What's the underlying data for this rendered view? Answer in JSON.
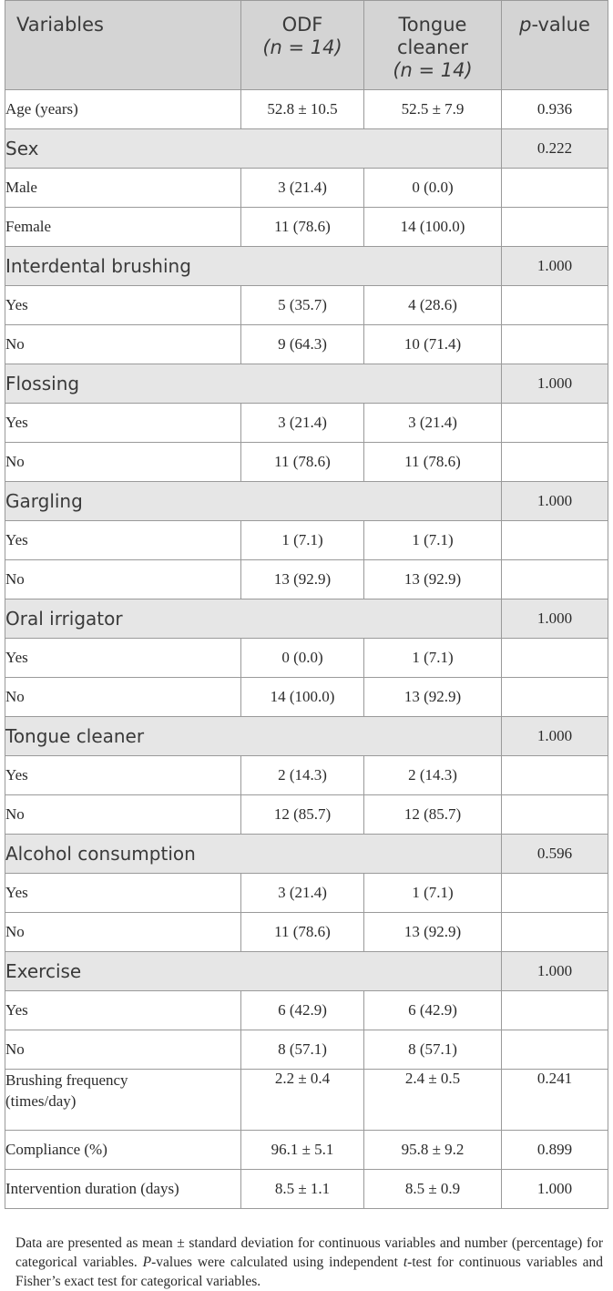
{
  "table": {
    "header": {
      "variables": "Variables",
      "odf_line1": "ODF",
      "odf_n": "(n = 14)",
      "tc_line1": "Tongue",
      "tc_line2": "cleaner",
      "tc_n": "(n = 14)",
      "p_italic": "p",
      "p_rest": "-value"
    },
    "age": {
      "label": "Age (years)",
      "odf": "52.8 ± 10.5",
      "tc": "52.5 ± 7.9",
      "p": "0.936"
    },
    "sections": [
      {
        "label": "Sex",
        "p": "0.222",
        "rows": [
          {
            "label": "Male",
            "odf": "3 (21.4)",
            "tc": "0 (0.0)"
          },
          {
            "label": "Female",
            "odf": "11 (78.6)",
            "tc": "14 (100.0)"
          }
        ]
      },
      {
        "label": "Interdental brushing",
        "p": "1.000",
        "rows": [
          {
            "label": "Yes",
            "odf": "5 (35.7)",
            "tc": "4 (28.6)"
          },
          {
            "label": "No",
            "odf": "9 (64.3)",
            "tc": "10 (71.4)"
          }
        ]
      },
      {
        "label": "Flossing",
        "p": "1.000",
        "rows": [
          {
            "label": "Yes",
            "odf": "3 (21.4)",
            "tc": "3 (21.4)"
          },
          {
            "label": "No",
            "odf": "11 (78.6)",
            "tc": "11 (78.6)"
          }
        ]
      },
      {
        "label": "Gargling",
        "p": "1.000",
        "rows": [
          {
            "label": "Yes",
            "odf": "1 (7.1)",
            "tc": "1 (7.1)"
          },
          {
            "label": "No",
            "odf": "13 (92.9)",
            "tc": "13 (92.9)"
          }
        ]
      },
      {
        "label": "Oral irrigator",
        "p": "1.000",
        "rows": [
          {
            "label": "Yes",
            "odf": "0 (0.0)",
            "tc": "1 (7.1)"
          },
          {
            "label": "No",
            "odf": "14 (100.0)",
            "tc": "13 (92.9)"
          }
        ]
      },
      {
        "label": "Tongue cleaner",
        "p": "1.000",
        "rows": [
          {
            "label": "Yes",
            "odf": "2 (14.3)",
            "tc": "2 (14.3)"
          },
          {
            "label": "No",
            "odf": "12 (85.7)",
            "tc": "12 (85.7)"
          }
        ]
      },
      {
        "label": "Alcohol consumption",
        "p": "0.596",
        "rows": [
          {
            "label": "Yes",
            "odf": "3 (21.4)",
            "tc": "1 (7.1)"
          },
          {
            "label": "No",
            "odf": "11 (78.6)",
            "tc": "13 (92.9)"
          }
        ]
      },
      {
        "label": "Exercise",
        "p": "1.000",
        "rows": [
          {
            "label": "Yes",
            "odf": "6 (42.9)",
            "tc": "6 (42.9)"
          },
          {
            "label": "No",
            "odf": "8 (57.1)",
            "tc": "8 (57.1)"
          }
        ]
      }
    ],
    "brushing": {
      "label_line1": "Brushing frequency",
      "label_line2": "(times/day)",
      "odf": "2.2 ± 0.4",
      "tc": "2.4 ± 0.5",
      "p": "0.241"
    },
    "compliance": {
      "label": "Compliance (%)",
      "odf": "96.1 ± 5.1",
      "tc": "95.8 ± 9.2",
      "p": "0.899"
    },
    "duration": {
      "label": "Intervention duration (days)",
      "odf": "8.5 ± 1.1",
      "tc": "8.5 ± 0.9",
      "p": "1.000"
    }
  },
  "footnote": {
    "part1": "Data are presented as mean ± standard deviation for continuous variables and number (percentage) for categorical variables. ",
    "p_italic": "P",
    "part2": "-values were calculated using independent ",
    "t_italic": "t",
    "part3": "-test for continuous variables and Fisher’s exact test for categorical variables."
  }
}
